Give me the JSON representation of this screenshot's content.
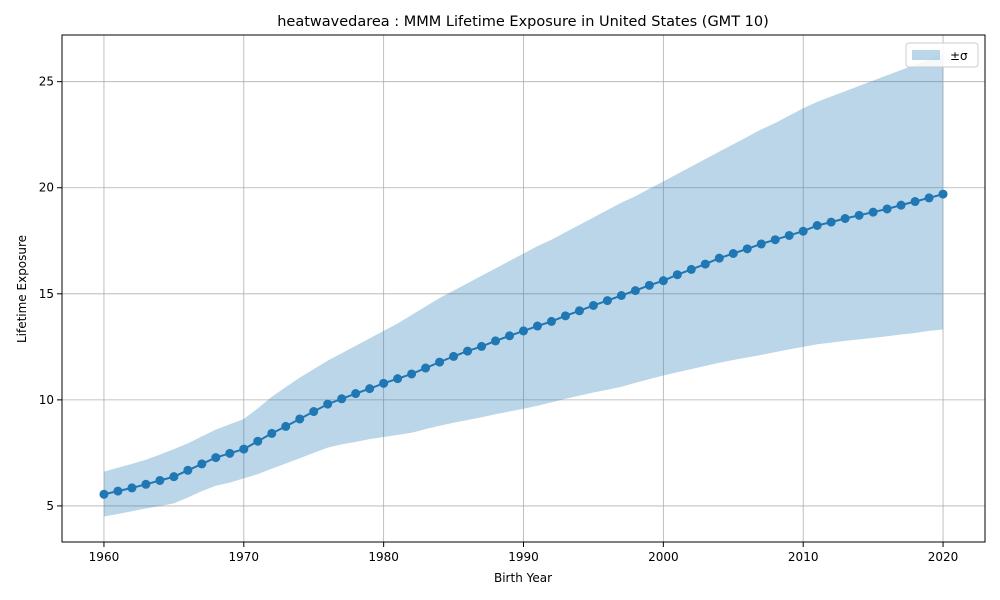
{
  "chart_data": {
    "type": "line",
    "title": "heatwavedarea : MMM Lifetime Exposure in United States (GMT 10)",
    "xlabel": "Birth Year",
    "ylabel": "Lifetime Exposure",
    "xlim": [
      1957,
      2023
    ],
    "ylim": [
      3.3,
      27.2
    ],
    "xticks": [
      1960,
      1970,
      1980,
      1990,
      2000,
      2010,
      2020
    ],
    "yticks": [
      5,
      10,
      15,
      20,
      25
    ],
    "grid": true,
    "legend_position": "top-right",
    "legend": [
      {
        "label": "±σ",
        "type": "band"
      }
    ],
    "colors": {
      "line": "#1f77b4",
      "band": "#1f77b4",
      "grid": "#b0b0b0"
    },
    "x": [
      1960,
      1961,
      1962,
      1963,
      1964,
      1965,
      1966,
      1967,
      1968,
      1969,
      1970,
      1971,
      1972,
      1973,
      1974,
      1975,
      1976,
      1977,
      1978,
      1979,
      1980,
      1981,
      1982,
      1983,
      1984,
      1985,
      1986,
      1987,
      1988,
      1989,
      1990,
      1991,
      1992,
      1993,
      1994,
      1995,
      1996,
      1997,
      1998,
      1999,
      2000,
      2001,
      2002,
      2003,
      2004,
      2005,
      2006,
      2007,
      2008,
      2009,
      2010,
      2011,
      2012,
      2013,
      2014,
      2015,
      2016,
      2017,
      2018,
      2019,
      2020
    ],
    "mean": [
      5.55,
      5.7,
      5.85,
      6.02,
      6.2,
      6.38,
      6.68,
      6.98,
      7.28,
      7.48,
      7.68,
      8.05,
      8.42,
      8.75,
      9.1,
      9.45,
      9.8,
      10.05,
      10.3,
      10.53,
      10.78,
      11.0,
      11.22,
      11.5,
      11.78,
      12.05,
      12.3,
      12.52,
      12.78,
      13.02,
      13.25,
      13.48,
      13.7,
      13.96,
      14.2,
      14.45,
      14.68,
      14.92,
      15.15,
      15.4,
      15.62,
      15.9,
      16.15,
      16.4,
      16.68,
      16.9,
      17.12,
      17.35,
      17.55,
      17.75,
      17.95,
      18.22,
      18.38,
      18.55,
      18.7,
      18.85,
      19.0,
      19.18,
      19.35,
      19.52,
      19.7
    ],
    "upper": [
      6.62,
      6.8,
      6.98,
      7.18,
      7.42,
      7.68,
      7.95,
      8.28,
      8.6,
      8.85,
      9.1,
      9.6,
      10.15,
      10.6,
      11.05,
      11.45,
      11.85,
      12.2,
      12.55,
      12.9,
      13.25,
      13.6,
      14.0,
      14.4,
      14.8,
      15.15,
      15.5,
      15.85,
      16.2,
      16.55,
      16.9,
      17.25,
      17.55,
      17.9,
      18.25,
      18.6,
      18.95,
      19.3,
      19.6,
      19.95,
      20.3,
      20.65,
      21.0,
      21.35,
      21.7,
      22.05,
      22.4,
      22.75,
      23.05,
      23.4,
      23.75,
      24.05,
      24.3,
      24.55,
      24.8,
      25.05,
      25.3,
      25.55,
      25.8,
      26.05,
      26.3
    ],
    "lower": [
      4.5,
      4.62,
      4.75,
      4.88,
      5.0,
      5.12,
      5.4,
      5.7,
      5.95,
      6.1,
      6.3,
      6.5,
      6.75,
      7.0,
      7.25,
      7.5,
      7.75,
      7.9,
      8.02,
      8.15,
      8.25,
      8.35,
      8.45,
      8.62,
      8.78,
      8.92,
      9.05,
      9.18,
      9.32,
      9.45,
      9.58,
      9.72,
      9.88,
      10.05,
      10.2,
      10.35,
      10.48,
      10.62,
      10.8,
      10.98,
      11.15,
      11.3,
      11.45,
      11.6,
      11.75,
      11.88,
      12.0,
      12.12,
      12.25,
      12.38,
      12.5,
      12.62,
      12.7,
      12.78,
      12.85,
      12.92,
      13.0,
      13.08,
      13.15,
      13.25,
      13.32
    ]
  }
}
